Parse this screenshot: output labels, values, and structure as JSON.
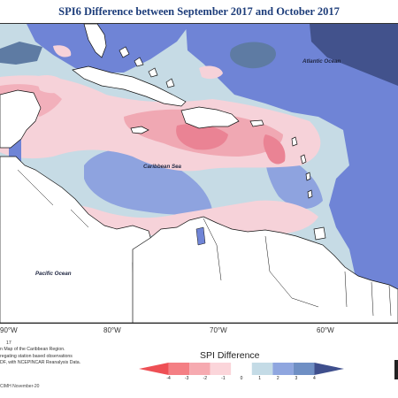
{
  "title": "SPI6 Difference between September 2017 and October 2017",
  "map": {
    "labels": {
      "atlantic": "Atlantic Ocean",
      "caribbean": "Caribbean Sea",
      "pacific": "Pacific Ocean"
    },
    "longitude_labels": [
      "90°W",
      "80°W",
      "70°W",
      "60°W"
    ],
    "longitude_values": [
      -90,
      -80,
      -70,
      -60
    ]
  },
  "note": {
    "line1": "17",
    "line2": "n Map of the Caribbean Region.",
    "line3": "regating station based observations",
    "line4": "DF, with NCEPINCAR Reanalysis Data.",
    "stamp": "CIMH November-20"
  },
  "legend": {
    "title": "SPI Difference",
    "ticks": [
      "-4",
      "-3",
      "-2",
      "-1",
      "0",
      "1",
      "2",
      "3",
      "4"
    ],
    "colors": [
      "#ee4f55",
      "#f47f84",
      "#f6aab0",
      "#fbd5da",
      "#ffffff",
      "#c4dbe6",
      "#8fa6df",
      "#6f8fc4",
      "#3f4f8d"
    ]
  },
  "colors": {
    "title": "#1d3d7a",
    "land": "#ffffff",
    "strong_blue": "#6b82d8",
    "mid_blue": "#9eb4e6",
    "light_blue": "#c4dbe6",
    "slate": "#5f7ca4",
    "navy": "#3b4d86",
    "pink_light": "#f8d6dc",
    "pink_mid": "#f1aab5",
    "red": "#e98090"
  }
}
